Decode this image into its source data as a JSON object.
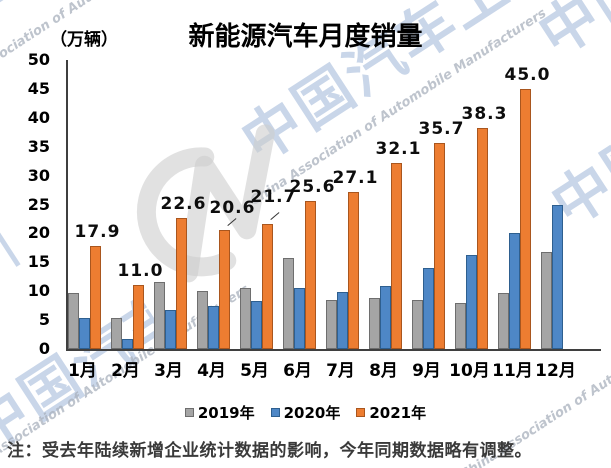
{
  "title": "新能源汽车月度销量",
  "unit_label": "（万辆）",
  "note": "注：受去年陆续新增企业统计数据的影响，今年同期数据略有调整。",
  "watermark": {
    "cn": "中国汽车工业协会",
    "en": "China Association of Automobile Manufacturers"
  },
  "chart_data": {
    "type": "bar",
    "title": "新能源汽车月度销量",
    "ylabel": "万辆",
    "categories": [
      "1月",
      "2月",
      "3月",
      "4月",
      "5月",
      "6月",
      "7月",
      "8月",
      "9月",
      "10月",
      "11月",
      "12月"
    ],
    "series": [
      {
        "name": "2019年",
        "color": "#A5A5A5",
        "border": "#6e6e6e",
        "values": [
          9.7,
          5.4,
          11.6,
          10.0,
          10.5,
          15.7,
          8.5,
          8.8,
          8.4,
          7.9,
          9.7,
          16.8
        ]
      },
      {
        "name": "2020年",
        "color": "#4E87C6",
        "border": "#2e5f8f",
        "values": [
          5.3,
          1.8,
          6.7,
          7.4,
          8.3,
          10.5,
          9.9,
          10.9,
          14.1,
          16.2,
          20.0,
          24.9
        ]
      },
      {
        "name": "2021年",
        "color": "#ED7D31",
        "border": "#a9561e",
        "values": [
          17.9,
          11.0,
          22.6,
          20.6,
          21.7,
          25.6,
          27.1,
          32.1,
          35.7,
          38.3,
          45.0,
          null
        ]
      }
    ],
    "value_labels": {
      "series": "2021年",
      "values": [
        "17.9",
        "11.0",
        "22.6",
        "20.6",
        "21.7",
        "25.6",
        "27.1",
        "32.1",
        "35.7",
        "38.3",
        "45.0",
        ""
      ]
    },
    "ylim": [
      0,
      50
    ],
    "ytick_step": 5,
    "grid": false,
    "legend_position": "bottom"
  }
}
